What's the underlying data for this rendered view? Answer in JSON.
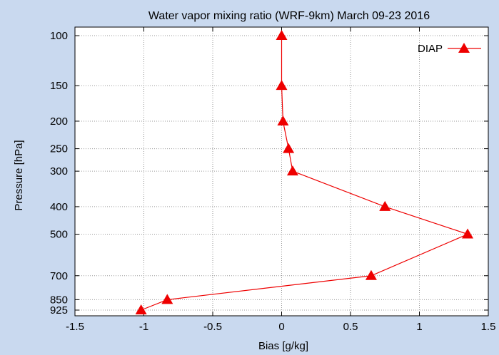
{
  "chart_data": {
    "type": "line",
    "title": "Water vapor mixing ratio (WRF-9km) March 09-23 2016",
    "xlabel": "Bias [g/kg]",
    "ylabel": "Pressure [hPa]",
    "xlim": [
      -1.5,
      1.5
    ],
    "ylim": [
      100,
      925
    ],
    "y_scale": "log",
    "y_inverted": true,
    "grid": true,
    "legend_position": "top-right",
    "x_ticks": [
      -1.5,
      -1,
      -0.5,
      0,
      0.5,
      1,
      1.5
    ],
    "x_tick_labels": [
      "-1.5",
      "-1",
      "-0.5",
      "0",
      "0.5",
      "1",
      "1.5"
    ],
    "y_ticks": [
      100,
      150,
      200,
      250,
      300,
      400,
      500,
      700,
      850,
      925
    ],
    "y_tick_labels": [
      "100",
      "150",
      "200",
      "250",
      "300",
      "400",
      "500",
      "700",
      "850",
      "925"
    ],
    "series": [
      {
        "name": "DIAP",
        "color": "#ee0000",
        "marker": "triangle",
        "x": [
          0.0,
          0.0,
          0.01,
          0.05,
          0.08,
          0.75,
          1.35,
          0.65,
          -0.83,
          -1.02
        ],
        "y": [
          100,
          150,
          200,
          250,
          300,
          400,
          500,
          700,
          850,
          925
        ]
      }
    ]
  }
}
